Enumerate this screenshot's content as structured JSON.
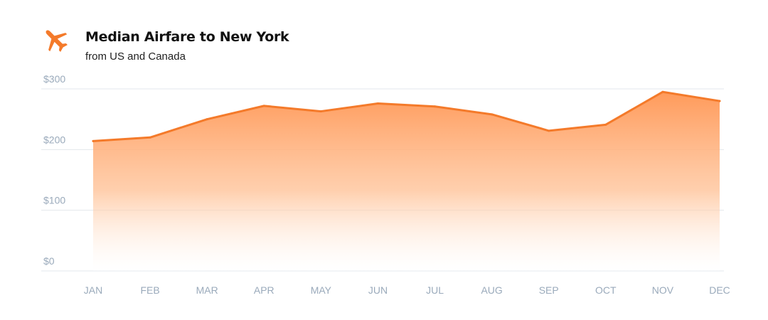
{
  "header": {
    "title": "Median Airfare to New York",
    "subtitle": "from US and Canada",
    "icon": "airplane-icon"
  },
  "colors": {
    "accent": "#f47a2a",
    "fill_top": "#ff9a5a",
    "grid": "#e3e7ec",
    "axis_text": "#9aaabb"
  },
  "chart_data": {
    "type": "area",
    "title": "Median Airfare to New York",
    "subtitle": "from US and Canada",
    "categories": [
      "JAN",
      "FEB",
      "MAR",
      "APR",
      "MAY",
      "JUN",
      "JUL",
      "AUG",
      "SEP",
      "OCT",
      "NOV",
      "DEC"
    ],
    "values": [
      214,
      220,
      250,
      272,
      263,
      276,
      271,
      258,
      231,
      241,
      295,
      280
    ],
    "yticks": [
      0,
      100,
      200,
      300
    ],
    "ytick_labels": [
      "$0",
      "$100",
      "$200",
      "$300"
    ],
    "ylim": [
      0,
      300
    ],
    "grid": true,
    "legend": "none"
  }
}
